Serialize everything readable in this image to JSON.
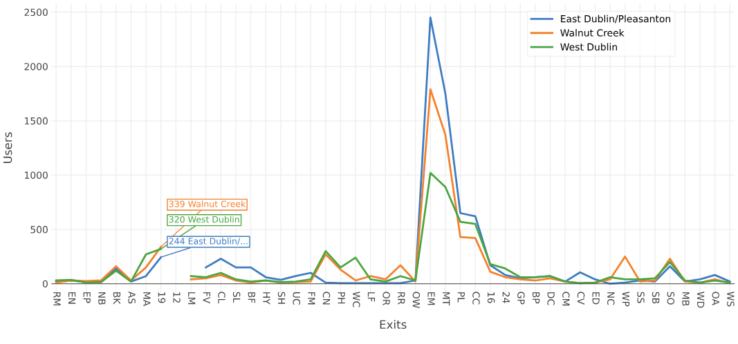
{
  "chart_data": {
    "type": "line",
    "xlabel": "Exits",
    "ylabel": "Users",
    "categories": [
      "RM",
      "EN",
      "EP",
      "NB",
      "BK",
      "AS",
      "MA",
      "19",
      "12",
      "LM",
      "FV",
      "CL",
      "SL",
      "BF",
      "HY",
      "SH",
      "UC",
      "FM",
      "CN",
      "PH",
      "WC",
      "LF",
      "OR",
      "RR",
      "OW",
      "EM",
      "MT",
      "PL",
      "CC",
      "16",
      "24",
      "GP",
      "BP",
      "DC",
      "CM",
      "CV",
      "ED",
      "NC",
      "WP",
      "SS",
      "SB",
      "SO",
      "MB",
      "WD",
      "OA",
      "WS"
    ],
    "series": [
      {
        "name": "East Dublin/Pleasanton",
        "color": "#3e7cc2",
        "values": [
          20,
          30,
          15,
          15,
          140,
          20,
          70,
          244,
          null,
          null,
          150,
          230,
          150,
          150,
          60,
          35,
          70,
          100,
          10,
          5,
          5,
          5,
          5,
          5,
          30,
          2450,
          1750,
          650,
          620,
          170,
          80,
          50,
          60,
          70,
          20,
          105,
          40,
          0,
          10,
          30,
          20,
          160,
          20,
          40,
          80,
          20
        ]
      },
      {
        "name": "Walnut Creek",
        "color": "#f4812c",
        "values": [
          10,
          30,
          25,
          30,
          160,
          30,
          150,
          339,
          null,
          40,
          50,
          80,
          30,
          10,
          30,
          10,
          15,
          20,
          270,
          130,
          30,
          70,
          40,
          170,
          20,
          1790,
          1370,
          430,
          420,
          110,
          60,
          40,
          30,
          50,
          20,
          5,
          10,
          40,
          250,
          20,
          30,
          230,
          20,
          10,
          40,
          5
        ]
      },
      {
        "name": "West Dublin",
        "color": "#4aa540",
        "values": [
          30,
          35,
          10,
          15,
          120,
          20,
          270,
          320,
          null,
          70,
          60,
          100,
          40,
          20,
          30,
          15,
          20,
          40,
          300,
          150,
          240,
          40,
          20,
          70,
          30,
          1020,
          890,
          570,
          550,
          180,
          140,
          60,
          60,
          70,
          20,
          5,
          10,
          60,
          40,
          40,
          50,
          200,
          30,
          10,
          30,
          10
        ]
      }
    ],
    "ylim": [
      -80,
      2580
    ],
    "yticks": [
      0,
      500,
      1000,
      1500,
      2000,
      2500
    ],
    "grid": true,
    "legend": "top right",
    "marker": "none",
    "line_style": "solid",
    "annotations": [
      {
        "text": "339 Walnut Creek",
        "x": "19",
        "y": 339
      },
      {
        "text": "320 West Dublin",
        "x": "19",
        "y": 320
      },
      {
        "text": "244 East Dublin/...",
        "x": "19",
        "y": 244
      }
    ]
  }
}
